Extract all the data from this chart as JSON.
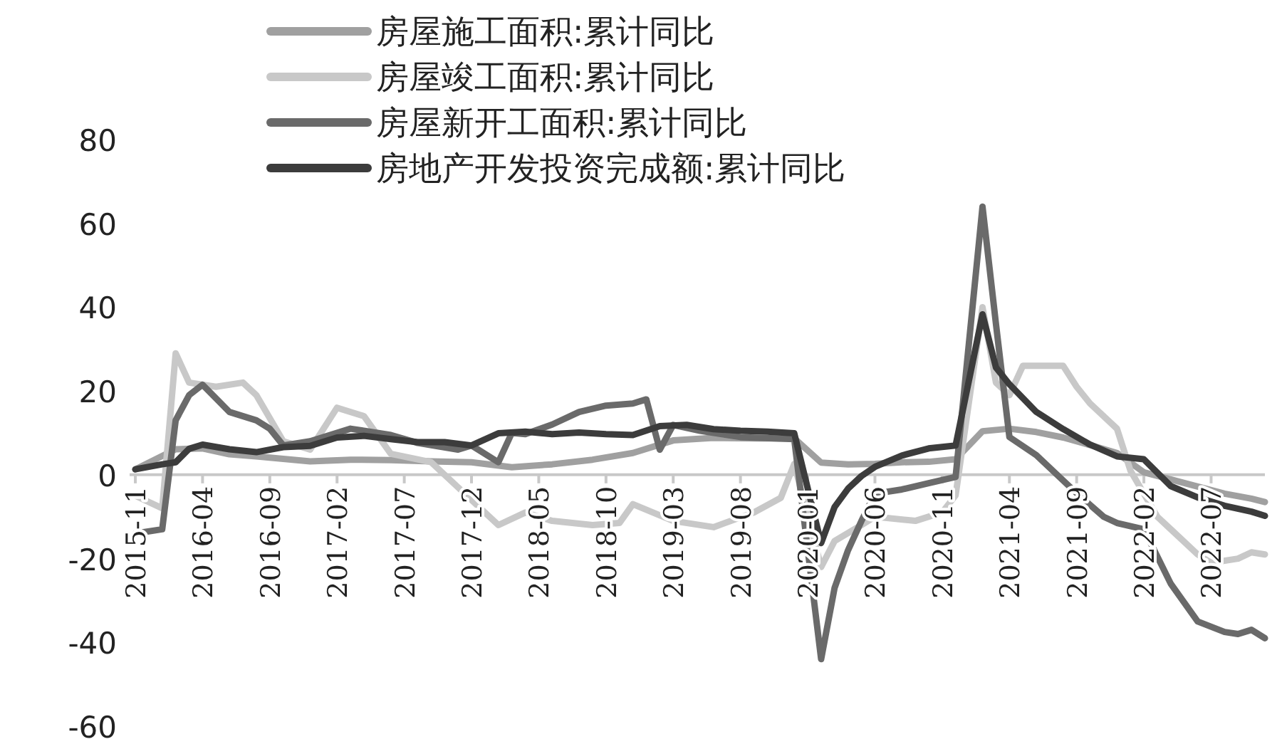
{
  "chart_data": {
    "type": "line",
    "xlim": [
      "2015-11",
      "2022-11"
    ],
    "xticks": [
      "2015-11",
      "2016-04",
      "2016-09",
      "2017-02",
      "2017-07",
      "2017-12",
      "2018-05",
      "2018-10",
      "2019-03",
      "2019-08",
      "2020-01",
      "2020-06",
      "2020-11",
      "2021-04",
      "2021-09",
      "2022-02",
      "2022-07"
    ],
    "ylim": [
      -60,
      80
    ],
    "yticks": [
      -60,
      -40,
      -20,
      0,
      20,
      40,
      60,
      80
    ],
    "grid": false,
    "legend": "top",
    "line_style": "solid",
    "marker": "none",
    "series": [
      {
        "name": "房屋施工面积:累计同比",
        "color": "#a0a0a0",
        "x": [
          "2015-11",
          "2016-02",
          "2016-04",
          "2016-06",
          "2016-08",
          "2016-10",
          "2016-12",
          "2017-03",
          "2017-06",
          "2017-09",
          "2017-12",
          "2018-03",
          "2018-06",
          "2018-09",
          "2018-12",
          "2019-03",
          "2019-06",
          "2019-09",
          "2019-12",
          "2020-02",
          "2020-04",
          "2020-06",
          "2020-08",
          "2020-10",
          "2020-12",
          "2021-02",
          "2021-04",
          "2021-06",
          "2021-08",
          "2021-10",
          "2021-12",
          "2022-02",
          "2022-04",
          "2022-06",
          "2022-08",
          "2022-10",
          "2022-11"
        ],
        "values": [
          1.3,
          6.1,
          6.3,
          4.9,
          4.4,
          3.8,
          3.2,
          3.6,
          3.5,
          3.2,
          3,
          1.8,
          2.5,
          3.6,
          5.2,
          8.2,
          8.8,
          8.7,
          8.7,
          2.9,
          2.5,
          2.6,
          3,
          3.1,
          3.7,
          10.4,
          11,
          10.2,
          8.9,
          7.1,
          5.2,
          0.6,
          -1.1,
          -2.8,
          -4.5,
          -5.7,
          -6.5
        ]
      },
      {
        "name": "房屋竣工面积:累计同比",
        "color": "#c8c8c8",
        "x": [
          "2015-11",
          "2016-01",
          "2016-02",
          "2016-03",
          "2016-05",
          "2016-07",
          "2016-08",
          "2016-10",
          "2016-12",
          "2017-02",
          "2017-04",
          "2017-06",
          "2017-09",
          "2017-11",
          "2017-12",
          "2018-02",
          "2018-04",
          "2018-06",
          "2018-09",
          "2018-11",
          "2018-12",
          "2019-03",
          "2019-06",
          "2019-09",
          "2019-11",
          "2019-12",
          "2020-02",
          "2020-03",
          "2020-05",
          "2020-06",
          "2020-09",
          "2020-11",
          "2020-12",
          "2021-02",
          "2021-03",
          "2021-04",
          "2021-05",
          "2021-08",
          "2021-09",
          "2021-10",
          "2021-12",
          "2022-01",
          "2022-03",
          "2022-04",
          "2022-06",
          "2022-07",
          "2022-09",
          "2022-10",
          "2022-11"
        ],
        "values": [
          -5,
          -8,
          29,
          22,
          21,
          22,
          19,
          8,
          6,
          16,
          14,
          5,
          3,
          -3,
          -6,
          -12,
          -9,
          -11,
          -12,
          -11.5,
          -7,
          -11,
          -12.5,
          -9,
          -5.5,
          2.6,
          -22,
          -15.8,
          -12,
          -10,
          -11,
          -9,
          -4.9,
          40,
          22,
          19,
          26,
          26,
          21,
          17,
          11,
          1,
          -10,
          -13,
          -19,
          -21,
          -20,
          -18.5,
          -19
        ]
      },
      {
        "name": "房屋新开工面积:累计同比",
        "color": "#6a6a6a",
        "x": [
          "2015-11",
          "2016-01",
          "2016-02",
          "2016-03",
          "2016-04",
          "2016-06",
          "2016-08",
          "2016-09",
          "2016-10",
          "2016-12",
          "2017-03",
          "2017-06",
          "2017-08",
          "2017-11",
          "2017-12",
          "2018-02",
          "2018-03",
          "2018-04",
          "2018-06",
          "2018-08",
          "2018-10",
          "2018-12",
          "2019-01",
          "2019-02",
          "2019-03",
          "2019-05",
          "2019-08",
          "2019-12",
          "2020-02",
          "2020-03",
          "2020-04",
          "2020-05",
          "2020-06",
          "2020-08",
          "2020-10",
          "2020-12",
          "2021-02",
          "2021-03",
          "2021-04",
          "2021-06",
          "2021-09",
          "2021-11",
          "2021-12",
          "2022-02",
          "2022-04",
          "2022-06",
          "2022-08",
          "2022-09",
          "2022-10",
          "2022-11"
        ],
        "values": [
          -14,
          -13,
          13,
          19,
          21.5,
          15,
          13,
          11,
          7,
          8,
          11,
          9.5,
          7.6,
          6,
          7,
          3,
          10,
          9.7,
          12,
          15,
          16.5,
          17,
          18,
          6,
          11.9,
          10.5,
          9,
          8.5,
          -44,
          -27,
          -18,
          -11,
          -4.5,
          -3.5,
          -2,
          -0.5,
          64,
          36,
          9,
          4.7,
          -4.4,
          -10,
          -11.5,
          -13,
          -26,
          -35,
          -37.5,
          -38,
          -37,
          -39
        ]
      },
      {
        "name": "房地产开发投资完成额:累计同比",
        "color": "#3c3c3c",
        "x": [
          "2015-11",
          "2016-01",
          "2016-02",
          "2016-03",
          "2016-04",
          "2016-06",
          "2016-08",
          "2016-10",
          "2016-12",
          "2017-02",
          "2017-04",
          "2017-06",
          "2017-08",
          "2017-10",
          "2017-12",
          "2018-02",
          "2018-04",
          "2018-06",
          "2018-08",
          "2018-10",
          "2018-12",
          "2019-02",
          "2019-04",
          "2019-06",
          "2019-08",
          "2019-10",
          "2019-12",
          "2020-02",
          "2020-03",
          "2020-04",
          "2020-05",
          "2020-06",
          "2020-08",
          "2020-10",
          "2020-12",
          "2021-02",
          "2021-03",
          "2021-04",
          "2021-06",
          "2021-08",
          "2021-10",
          "2021-12",
          "2022-02",
          "2022-04",
          "2022-06",
          "2022-08",
          "2022-10",
          "2022-11"
        ],
        "values": [
          1.3,
          2.5,
          3,
          6.2,
          7.2,
          6.1,
          5.4,
          6.6,
          6.9,
          8.9,
          9.3,
          8.5,
          7.8,
          7.8,
          7,
          9.9,
          10.3,
          9.7,
          10.1,
          9.7,
          9.5,
          11.6,
          11.9,
          10.9,
          10.5,
          10.3,
          9.9,
          -16.3,
          -7.7,
          -3.3,
          -0.3,
          1.9,
          4.6,
          6.3,
          7,
          38.3,
          25.6,
          21.6,
          15,
          10.9,
          7.2,
          4.4,
          3.7,
          -2.7,
          -5.4,
          -7.4,
          -8.8,
          -9.8
        ]
      }
    ]
  }
}
